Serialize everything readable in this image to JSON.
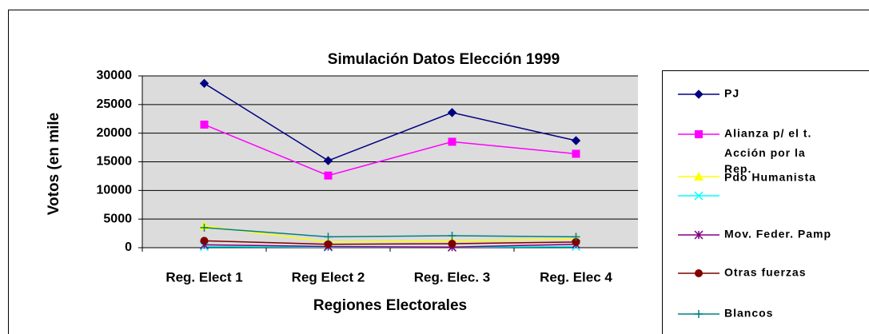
{
  "chart_data": {
    "type": "line",
    "title": "Simulación Datos Elección 1999",
    "x_label": "Regiones Electorales",
    "y_label": "Votos (en mile",
    "categories": [
      "Reg. Elect 1",
      "Reg Elect 2",
      "Reg. Elec. 3",
      "Reg. Elec 4"
    ],
    "ylim": [
      0,
      30000
    ],
    "yticks": [
      0,
      5000,
      10000,
      15000,
      20000,
      25000,
      30000
    ],
    "grid": true,
    "series": [
      {
        "name": "PJ",
        "color": "#000080",
        "marker": "diamond",
        "values": [
          28700,
          15200,
          23600,
          18700
        ]
      },
      {
        "name": "Alianza p/ el t.",
        "color": "#ff00ff",
        "marker": "square",
        "values": [
          21500,
          12600,
          18500,
          16400
        ]
      },
      {
        "name": "Acción por la Rep.",
        "color": "#ffff00",
        "marker": "triangle",
        "values": [
          3800,
          1000,
          1200,
          1500
        ]
      },
      {
        "name": "Pdo Humanista",
        "color": "#00ffff",
        "marker": "x",
        "values": [
          200,
          100,
          100,
          200
        ]
      },
      {
        "name": "Mov. Feder. Pamp",
        "color": "#800080",
        "marker": "star",
        "values": [
          500,
          200,
          100,
          600
        ]
      },
      {
        "name": "Otras fuerzas",
        "color": "#800000",
        "marker": "circle",
        "values": [
          1200,
          600,
          700,
          1000
        ]
      },
      {
        "name": "Blancos",
        "color": "#008080",
        "marker": "plus",
        "values": [
          3500,
          1900,
          2100,
          1900
        ]
      }
    ]
  }
}
